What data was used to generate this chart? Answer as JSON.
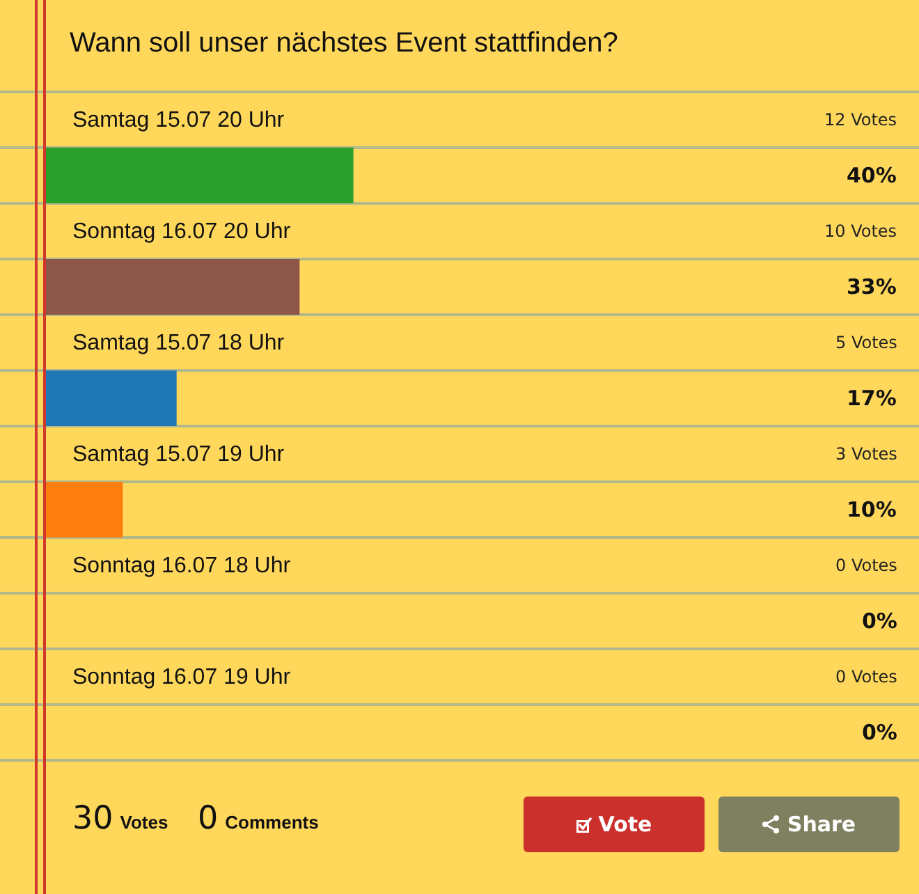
{
  "chart_data": {
    "type": "bar",
    "orientation": "horizontal",
    "title": "Wann soll unser nächstes Event stattfinden?",
    "categories": [
      "Samtag 15.07 20 Uhr",
      "Sonntag 16.07 20 Uhr",
      "Samtag 15.07 18 Uhr",
      "Samtag 15.07 19 Uhr",
      "Sonntag 16.07 18 Uhr",
      "Sonntag 16.07 19 Uhr"
    ],
    "values": [
      40,
      33,
      17,
      10,
      0,
      0
    ],
    "colors": [
      "#2ca02c",
      "#8c564b",
      "#1f77b4",
      "#ff7f0e",
      null,
      null
    ],
    "value_labels": [
      "40%",
      "33%",
      "17%",
      "10%",
      "0%",
      "0%"
    ],
    "tick_labels": "y",
    "annotations": [
      "12 Votes",
      "10 Votes",
      "5 Votes",
      "3 Votes",
      "0 Votes",
      "0 Votes",
      "30",
      "Votes",
      "0",
      "Comments",
      "Vote",
      "Share"
    ]
  }
}
